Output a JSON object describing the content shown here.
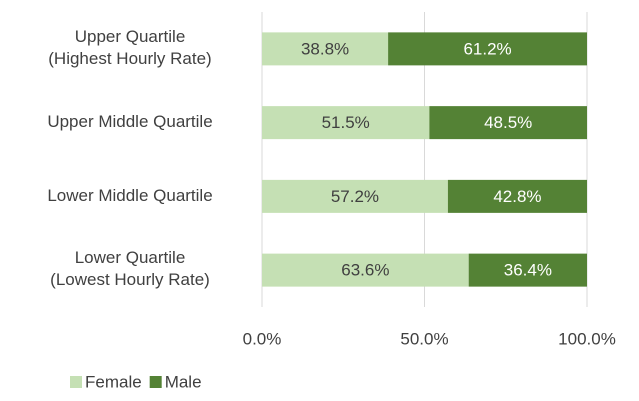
{
  "chart_data": {
    "type": "stacked-barh",
    "categories": [
      "Upper Quartile\n(Highest Hourly Rate)",
      "Upper Middle Quartile",
      "Lower Middle Quartile",
      "Lower Quartile\n(Lowest Hourly Rate)"
    ],
    "series": [
      {
        "name": "Female",
        "color": "#c5e0b4",
        "values": [
          38.8,
          51.5,
          57.2,
          63.6
        ],
        "value_labels": [
          "38.8%",
          "51.5%",
          "57.2%",
          "63.6%"
        ]
      },
      {
        "name": "Male",
        "color": "#548235",
        "values": [
          61.2,
          48.5,
          42.8,
          36.4
        ],
        "value_labels": [
          "61.2%",
          "48.5%",
          "42.8%",
          "36.4%"
        ]
      }
    ],
    "xlim": [
      0,
      100
    ],
    "xticks": [
      {
        "value": 0,
        "label": "0.0%"
      },
      {
        "value": 50,
        "label": "50.0%"
      },
      {
        "value": 100,
        "label": "100.0%"
      }
    ],
    "grid": true,
    "legend": "bottom"
  }
}
